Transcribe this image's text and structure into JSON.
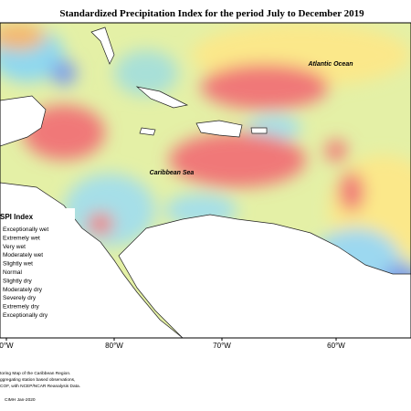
{
  "title": "Standardized Precipitation Index for the period July to December 2019",
  "labels": {
    "atlantic": "Atlantic Ocean",
    "caribbean": "Caribbean Sea"
  },
  "legend": {
    "title": "SPI Index",
    "items": [
      "Exceptionally wet",
      "Extremely wet",
      "Very wet",
      "Moderately wet",
      "Slightly wet",
      "Normal",
      "Slightly dry",
      "Moderately dry",
      "Severely dry",
      "Extremely dry",
      "Exceptionally dry"
    ]
  },
  "longitude_labels": [
    "0°W",
    "80°W",
    "70°W",
    "60°W"
  ],
  "footnote": [
    "toring Map of the Caribbean Region.",
    "ggregating station based observations,",
    "COF, with NCEP/NCAR Reanalysis Data."
  ],
  "credit": "CIMH Jan-2020"
}
